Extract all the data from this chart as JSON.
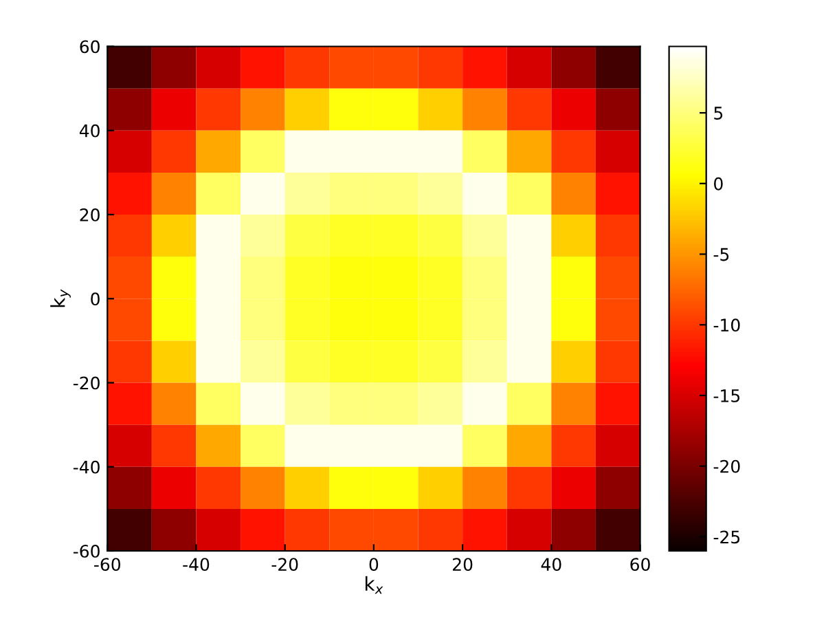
{
  "chart_data": {
    "type": "heatmap",
    "xlabel": "k$_{x}$",
    "ylabel": "k$_{y}$",
    "x": [
      -55,
      -45,
      -35,
      -25,
      -15,
      -5,
      5,
      15,
      25,
      35,
      45,
      55
    ],
    "y": [
      55,
      45,
      35,
      25,
      15,
      5,
      -5,
      -15,
      -25,
      -35,
      -45,
      -55
    ],
    "xlim": [
      -60,
      60
    ],
    "ylim": [
      -60,
      60
    ],
    "xticks": [
      -60,
      -40,
      -20,
      0,
      20,
      40,
      60
    ],
    "yticks": [
      -60,
      -40,
      -20,
      0,
      20,
      40,
      60
    ],
    "clim": [
      -26,
      9.7
    ],
    "cticks": [
      -25,
      -20,
      -15,
      -10,
      -5,
      0,
      5
    ],
    "cells": [
      [
        -23,
        -19,
        -15,
        -12,
        -10,
        -9,
        -9,
        -10,
        -12,
        -15,
        -19,
        -23
      ],
      [
        -19,
        -14,
        -10,
        -6,
        -2,
        1,
        1,
        -2,
        -6,
        -10,
        -14,
        -19
      ],
      [
        -15,
        -10,
        -4,
        4,
        9,
        9,
        9,
        9,
        4,
        -4,
        -10,
        -15
      ],
      [
        -12,
        -6,
        4,
        9,
        6,
        5,
        5,
        6,
        9,
        4,
        -6,
        -12
      ],
      [
        -10,
        -2,
        9,
        6,
        3,
        2,
        2,
        3,
        6,
        9,
        -2,
        -10
      ],
      [
        -9,
        1,
        9,
        5,
        2,
        1,
        1,
        2,
        5,
        9,
        1,
        -9
      ],
      [
        -9,
        1,
        9,
        5,
        2,
        1,
        1,
        2,
        5,
        9,
        1,
        -9
      ],
      [
        -10,
        -2,
        9,
        6,
        3,
        2,
        2,
        3,
        6,
        9,
        -2,
        -10
      ],
      [
        -12,
        -6,
        4,
        9,
        6,
        5,
        5,
        6,
        9,
        4,
        -6,
        -12
      ],
      [
        -15,
        -10,
        -4,
        4,
        9,
        9,
        9,
        9,
        4,
        -4,
        -10,
        -15
      ],
      [
        -19,
        -14,
        -10,
        -6,
        -2,
        1,
        1,
        -2,
        -6,
        -10,
        -14,
        -19
      ],
      [
        -23,
        -19,
        -15,
        -12,
        -10,
        -9,
        -9,
        -10,
        -12,
        -15,
        -19,
        -23
      ]
    ]
  }
}
